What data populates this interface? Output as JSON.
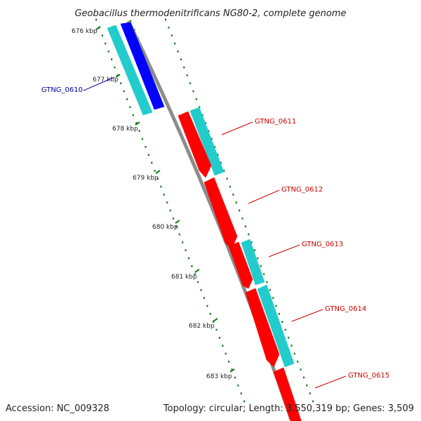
{
  "title": "Geobacillus thermodenitrificans NG80-2, complete genome",
  "accession": "Accession: NC_009328",
  "summary": "Topology: circular; Length: 3,550,319 bp; Genes: 3,509",
  "colors": {
    "backbone": "#8c8c8c",
    "forward_gene": "#ff0000",
    "reverse_gene": "#0000ff",
    "cds_feature": "#22cccc",
    "tick": "#1a7a1a",
    "forward_label": "#cc0000",
    "reverse_label": "#0000aa"
  },
  "kbp_ticks": [
    "676 kbp",
    "677 kbp",
    "678 kbp",
    "679 kbp",
    "680 kbp",
    "681 kbp",
    "682 kbp",
    "683 kbp"
  ],
  "genes": [
    {
      "name": "GTNG_0610",
      "strand": "reverse"
    },
    {
      "name": "GTNG_0611",
      "strand": "forward"
    },
    {
      "name": "GTNG_0612",
      "strand": "forward"
    },
    {
      "name": "GTNG_0613",
      "strand": "forward"
    },
    {
      "name": "GTNG_0614",
      "strand": "forward"
    },
    {
      "name": "GTNG_0615",
      "strand": "forward"
    }
  ]
}
